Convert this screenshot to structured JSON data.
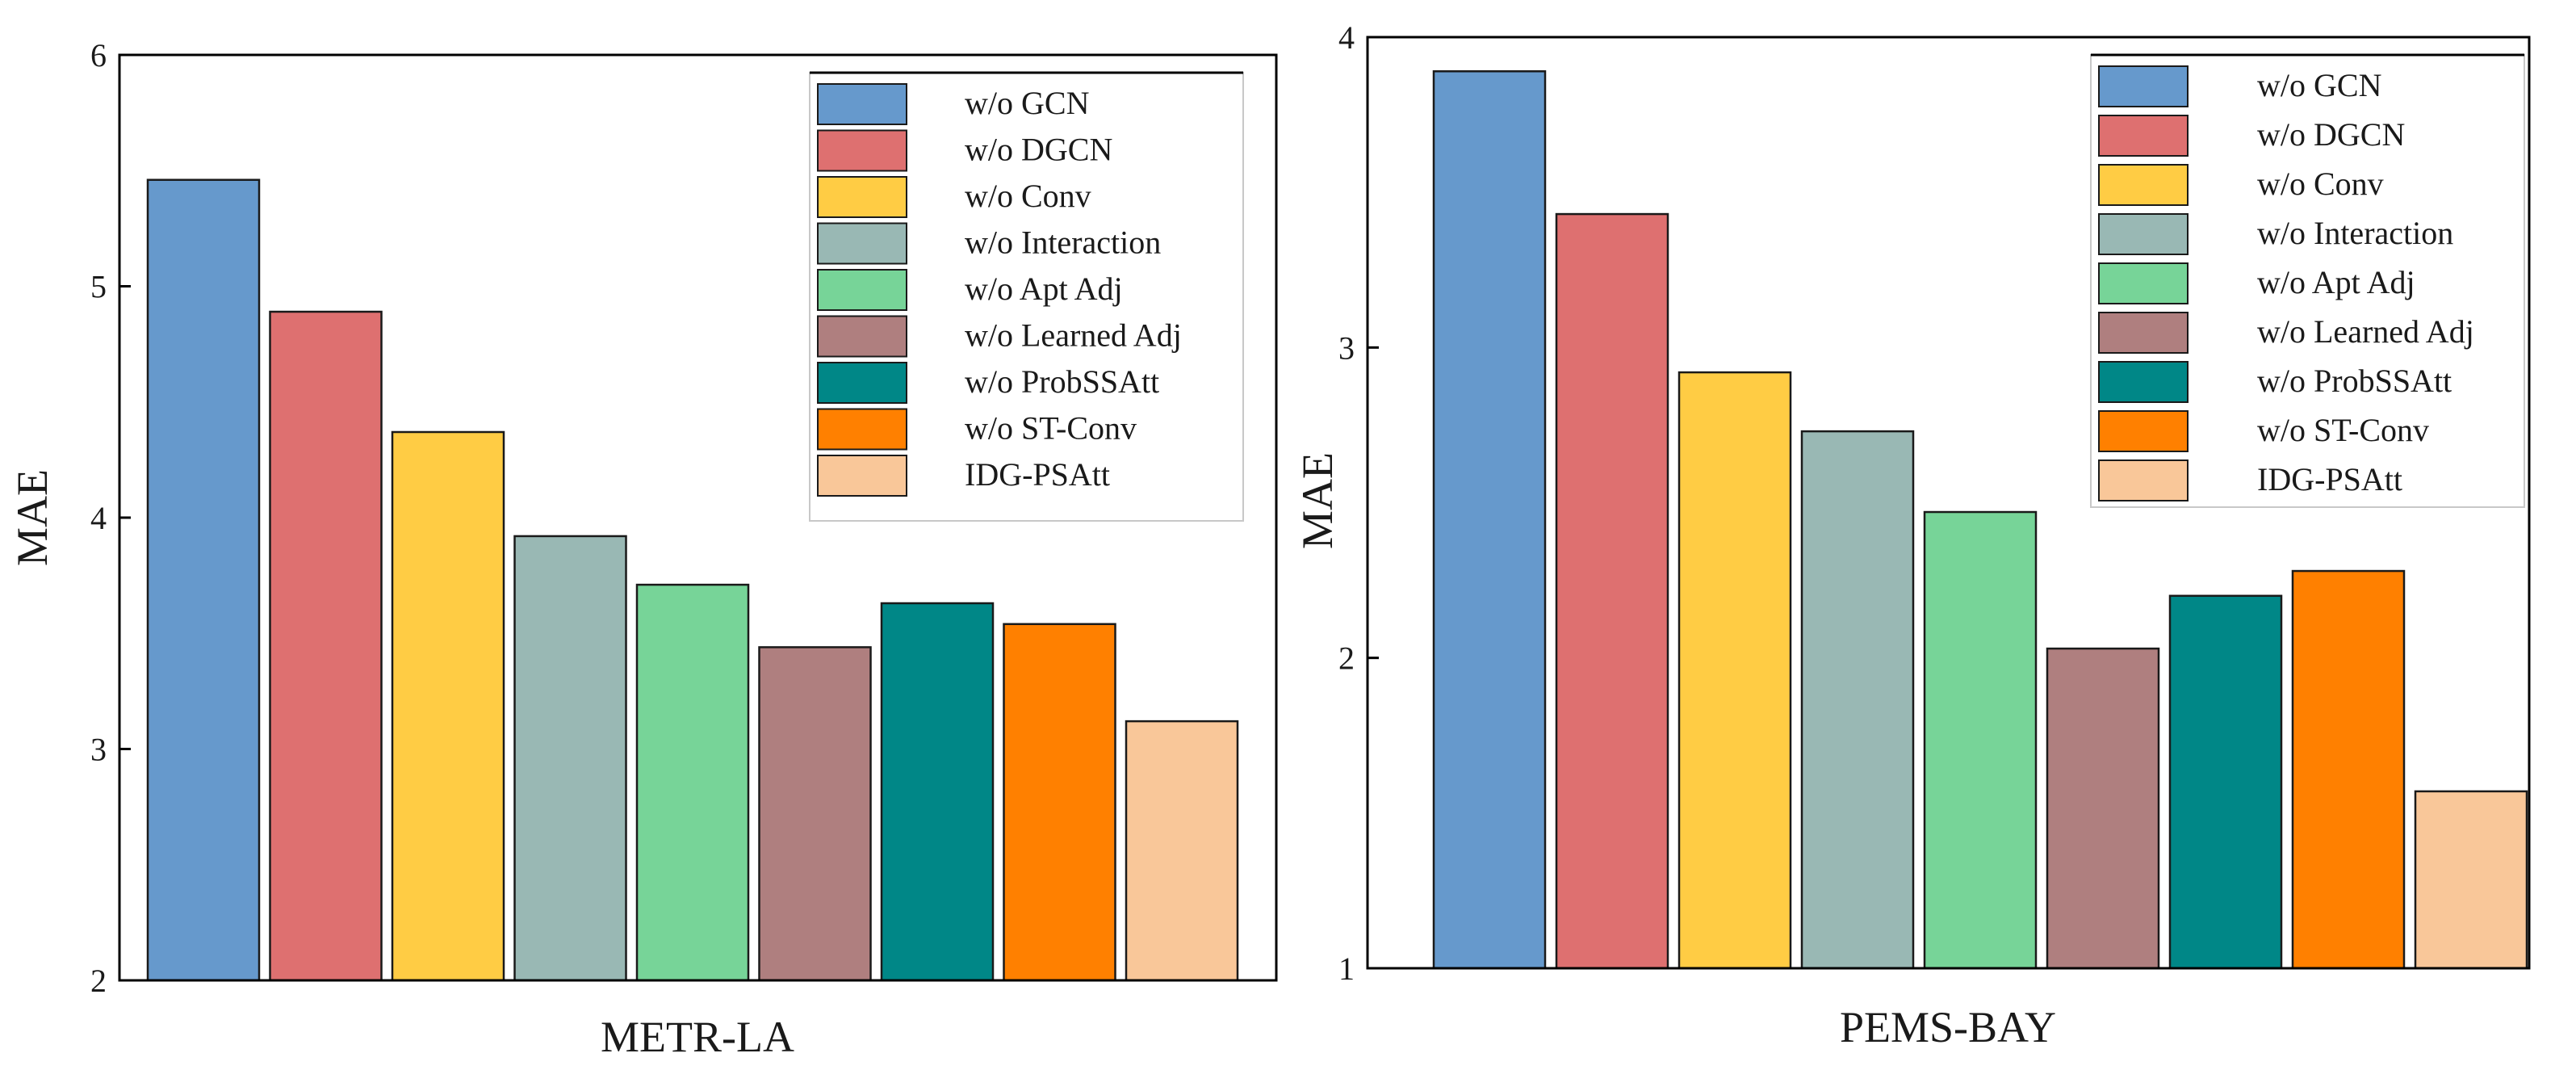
{
  "chart_data": [
    {
      "type": "bar",
      "title": "",
      "xlabel": "METR-LA",
      "ylabel": "MAE",
      "ylim": [
        2,
        6
      ],
      "yticks": [
        "2",
        "3",
        "4",
        "5",
        "6"
      ],
      "grid": false,
      "legend_position": "top-right",
      "series": [
        {
          "name": "w/o GCN",
          "value": 5.46,
          "color": "#6699CC"
        },
        {
          "name": "w/o DGCN",
          "value": 4.89,
          "color": "#DE7070"
        },
        {
          "name": "w/o Conv",
          "value": 4.37,
          "color": "#FFCC44"
        },
        {
          "name": "w/o Interaction",
          "value": 3.92,
          "color": "#99B8B4"
        },
        {
          "name": "w/o Apt Adj",
          "value": 3.71,
          "color": "#77D498"
        },
        {
          "name": "w/o Learned Adj",
          "value": 3.44,
          "color": "#AF7F7F"
        },
        {
          "name": "w/o ProbSSAtt",
          "value": 3.63,
          "color": "#008787"
        },
        {
          "name": "w/o ST-Conv",
          "value": 3.54,
          "color": "#FF8000"
        },
        {
          "name": "IDG-PSAtt",
          "value": 3.12,
          "color": "#F9C799"
        }
      ]
    },
    {
      "type": "bar",
      "title": "",
      "xlabel": "PEMS-BAY",
      "ylabel": "MAE",
      "ylim": [
        1,
        4
      ],
      "yticks": [
        "1",
        "2",
        "3",
        "4"
      ],
      "grid": false,
      "legend_position": "top-right",
      "series": [
        {
          "name": "w/o GCN",
          "value": 3.89,
          "color": "#6699CC"
        },
        {
          "name": "w/o DGCN",
          "value": 3.43,
          "color": "#DE7070"
        },
        {
          "name": "w/o Conv",
          "value": 2.92,
          "color": "#FFCC44"
        },
        {
          "name": "w/o Interaction",
          "value": 2.73,
          "color": "#99B8B4"
        },
        {
          "name": "w/o Apt Adj",
          "value": 2.47,
          "color": "#77D498"
        },
        {
          "name": "w/o Learned Adj",
          "value": 2.03,
          "color": "#AF7F7F"
        },
        {
          "name": "w/o ProbSSAtt",
          "value": 2.2,
          "color": "#008787"
        },
        {
          "name": "w/o ST-Conv",
          "value": 2.28,
          "color": "#FF8000"
        },
        {
          "name": "IDG-PSAtt",
          "value": 1.57,
          "color": "#F9C799"
        }
      ]
    }
  ]
}
